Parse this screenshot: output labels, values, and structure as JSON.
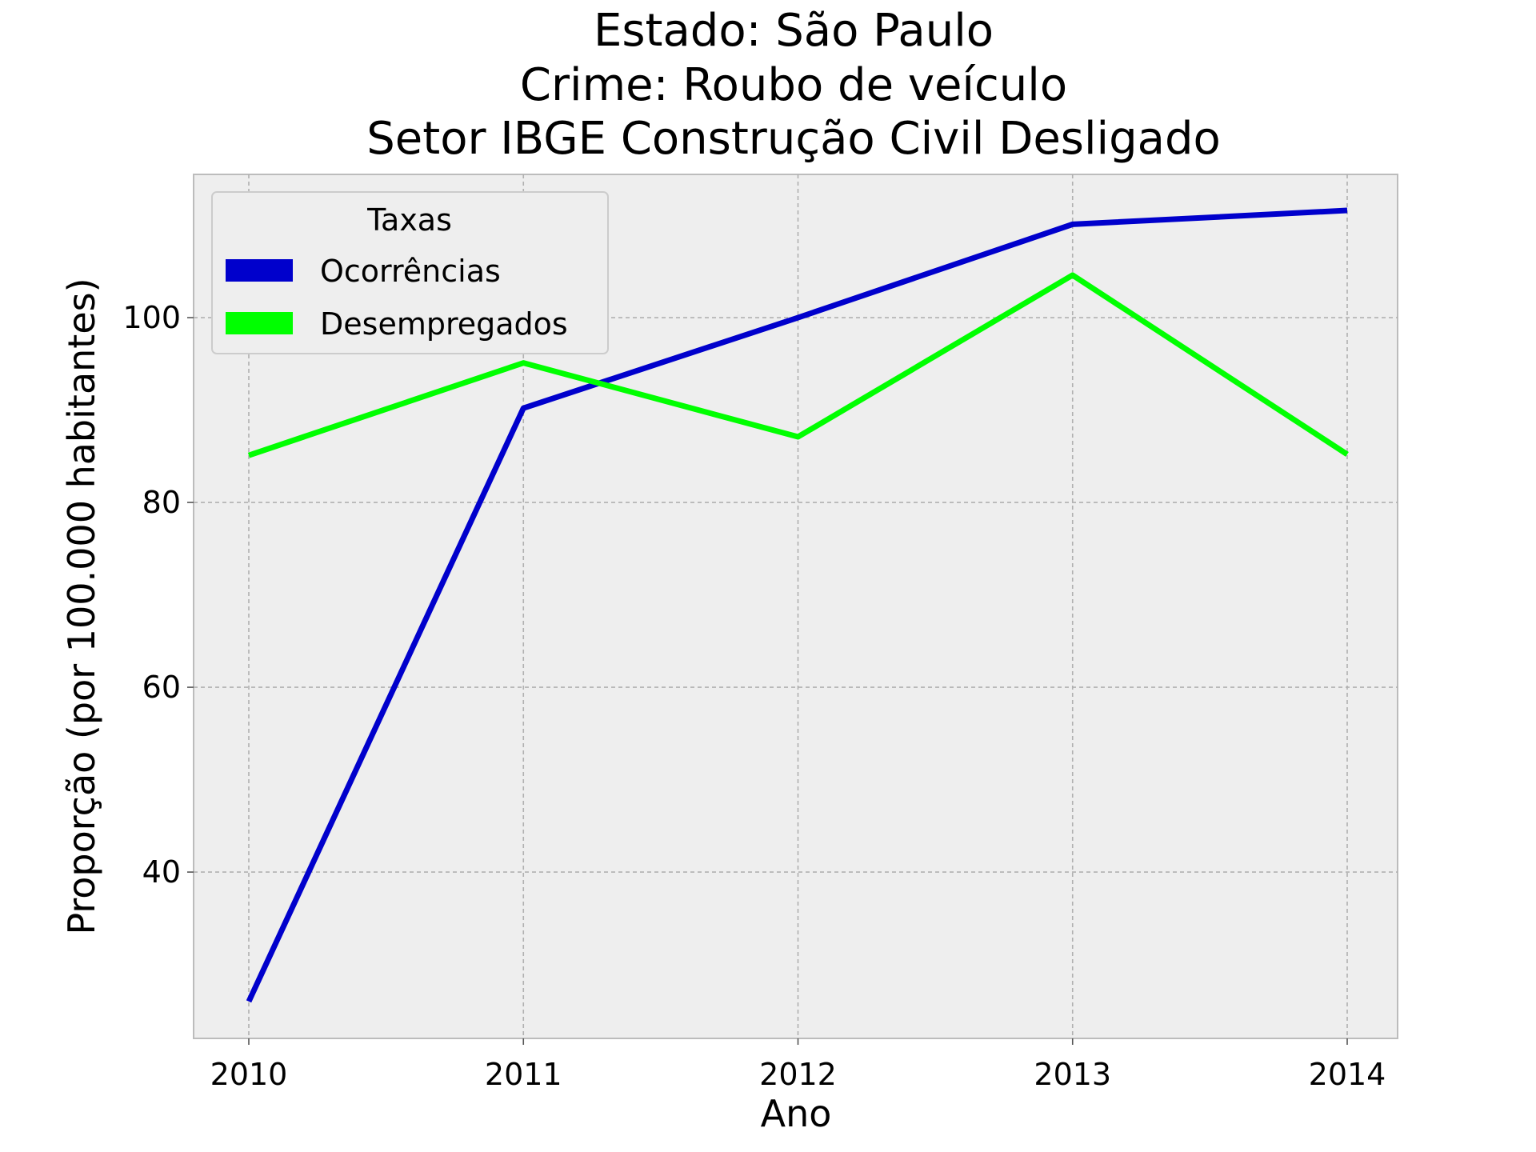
{
  "chart_data": {
    "type": "line",
    "title": [
      "Estado: São Paulo",
      "Crime: Roubo de veículo",
      "Setor IBGE  Construção Civil   Desligado"
    ],
    "xlabel": "Ano",
    "ylabel": "Proporção (por 100.000 habitantes)",
    "categories": [
      "2010",
      "2011",
      "2012",
      "2013",
      "2014"
    ],
    "ylim": [
      22,
      115.5
    ],
    "yticks": [
      "40",
      "60",
      "80",
      "100"
    ],
    "grid": true,
    "legend": {
      "title": "Taxas",
      "placement": "top-left"
    },
    "series": [
      {
        "name": "Ocorrências",
        "color": "#0000cc",
        "values": [
          26,
          90.2,
          100,
          110.1,
          111.6
        ]
      },
      {
        "name": "Desempregados",
        "color": "#00ff00",
        "values": [
          85.1,
          95.1,
          87.1,
          104.6,
          85.2
        ]
      }
    ]
  }
}
